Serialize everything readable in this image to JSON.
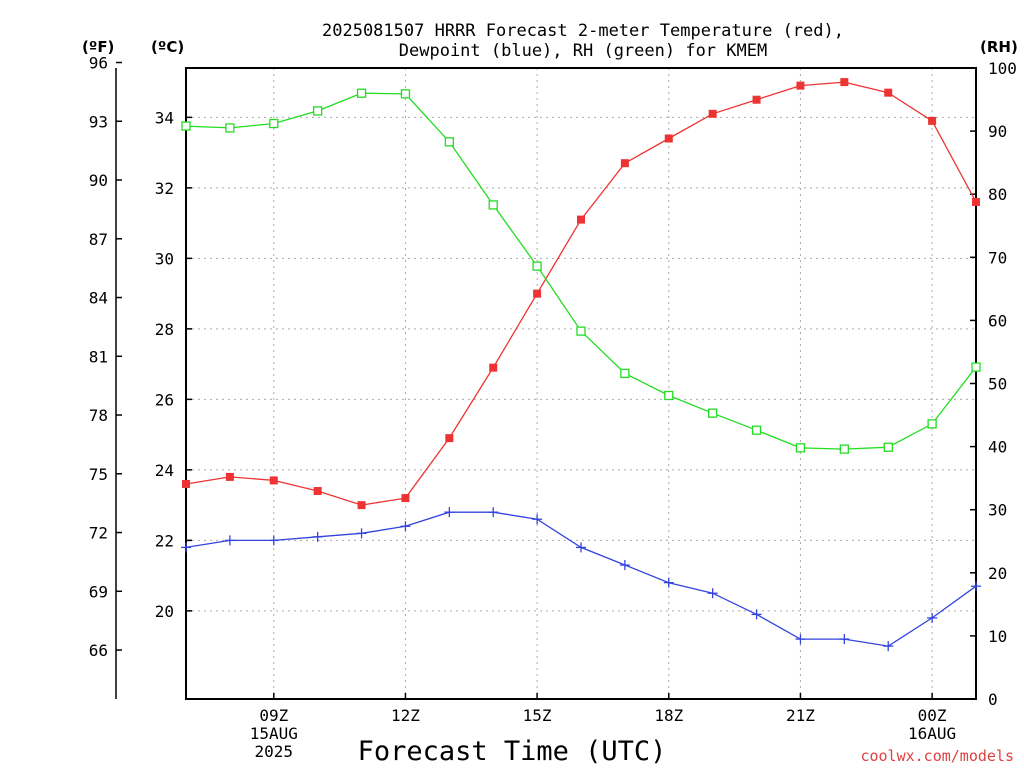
{
  "chart_data": {
    "type": "line",
    "title_line1": "2025081507 HRRR Forecast 2-meter Temperature (red),",
    "title_line2": "Dewpoint (blue), RH (green) for KMEM",
    "xlabel": "Forecast Time (UTC)",
    "watermark": "coolwx.com/models",
    "left_unit_f": "(ºF)",
    "left_unit_c": "(ºC)",
    "right_unit": "(RH)",
    "hours": [
      7,
      8,
      9,
      10,
      11,
      12,
      13,
      14,
      15,
      16,
      17,
      18,
      19,
      20,
      21,
      22,
      23,
      24,
      25
    ],
    "x_range": [
      7,
      25
    ],
    "celsius_range": [
      17.5,
      35.4
    ],
    "rh_range": [
      0,
      100
    ],
    "fahrenheit_ticks": [
      66,
      69,
      72,
      75,
      78,
      81,
      84,
      87,
      90,
      93,
      96
    ],
    "celsius_ticks": [
      20,
      22,
      24,
      26,
      28,
      30,
      32,
      34
    ],
    "rh_ticks": [
      0,
      10,
      20,
      30,
      40,
      50,
      60,
      70,
      80,
      90,
      100
    ],
    "x_ticks": [
      {
        "hour": 9,
        "lines": [
          "09Z",
          "15AUG",
          "2025"
        ]
      },
      {
        "hour": 12,
        "lines": [
          "12Z"
        ]
      },
      {
        "hour": 15,
        "lines": [
          "15Z"
        ]
      },
      {
        "hour": 18,
        "lines": [
          "18Z"
        ]
      },
      {
        "hour": 21,
        "lines": [
          "21Z"
        ]
      },
      {
        "hour": 24,
        "lines": [
          "00Z",
          "16AUG"
        ]
      }
    ],
    "series": [
      {
        "name": "Temperature",
        "axis": "celsius",
        "color": "#ee3333",
        "marker": "filled-square",
        "values": [
          23.6,
          23.8,
          23.7,
          23.4,
          23.0,
          23.2,
          24.9,
          26.9,
          29.0,
          31.1,
          32.7,
          33.4,
          34.1,
          34.5,
          34.9,
          35.0,
          34.7,
          33.9,
          31.6
        ]
      },
      {
        "name": "Dewpoint",
        "axis": "celsius",
        "color": "#3344dd",
        "marker": "plus",
        "values": [
          21.8,
          22.0,
          22.0,
          22.1,
          22.2,
          22.4,
          22.8,
          22.8,
          22.6,
          21.8,
          21.3,
          20.8,
          20.5,
          19.9,
          19.2,
          19.2,
          19.0,
          19.8,
          20.7
        ]
      },
      {
        "name": "RH",
        "axis": "rh",
        "color": "#22dd22",
        "marker": "open-square",
        "values": [
          90.8,
          90.5,
          91.2,
          93.2,
          96.0,
          95.9,
          88.3,
          78.3,
          68.6,
          58.3,
          51.6,
          48.1,
          45.3,
          42.6,
          39.8,
          39.6,
          39.9,
          43.6,
          52.6
        ]
      }
    ]
  }
}
